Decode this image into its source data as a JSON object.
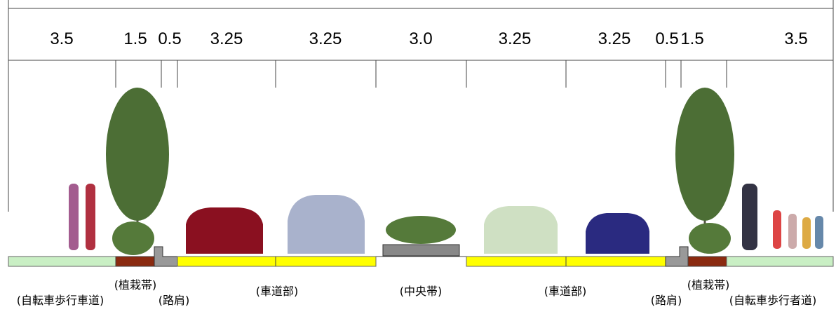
{
  "dimensions": [
    "3.5",
    "1.5",
    "0.5",
    "3.25",
    "3.25",
    "3.0",
    "3.25",
    "3.25",
    "0.5",
    "1.5",
    "3.5"
  ],
  "zones": [
    "(自転車歩行車道)",
    "(植栽帯)",
    "(路肩)",
    "(車道部)",
    "(中央帯)",
    "(車道部)",
    "(路肩)",
    "(植栽帯)",
    "(自転車歩行者道)"
  ]
}
